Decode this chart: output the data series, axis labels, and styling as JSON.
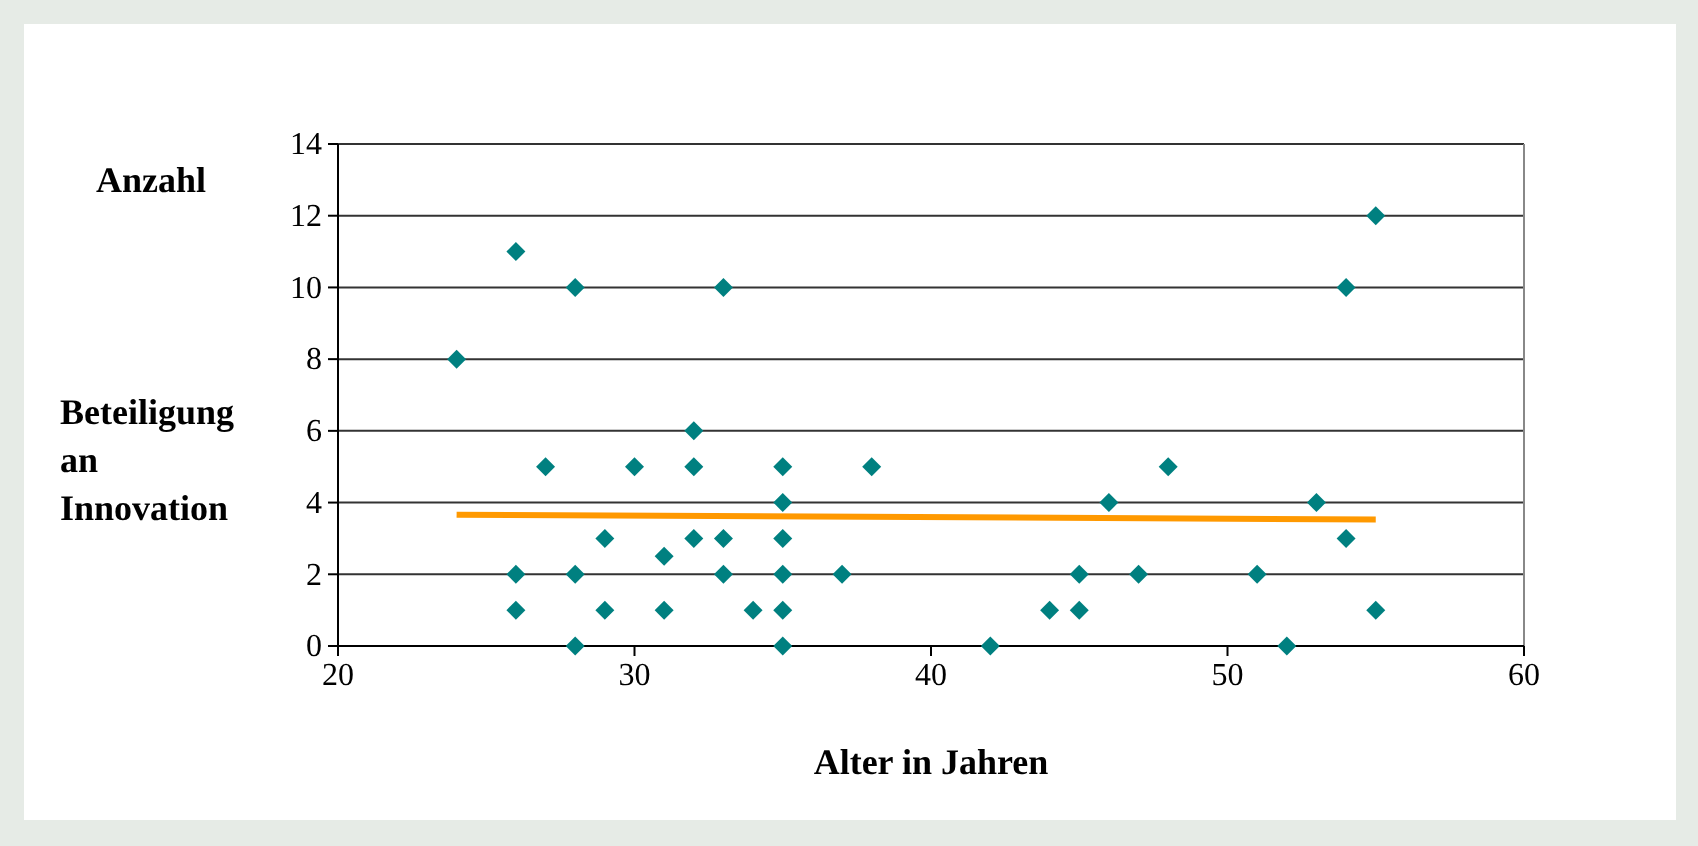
{
  "chart_data": {
    "type": "scatter",
    "xlabel": "Alter in Jahren",
    "ylabel": "Beteiligung an Innovation",
    "annotations": [
      "Anzahl"
    ],
    "xlim": [
      20,
      60
    ],
    "xticks": [
      20,
      30,
      40,
      50,
      60
    ],
    "ylim": [
      0,
      14
    ],
    "yticks": [
      0,
      2,
      4,
      6,
      8,
      10,
      12,
      14
    ],
    "grid": "y",
    "series": [
      {
        "marker": "diamond",
        "color": "#008080",
        "x": [
          24,
          26,
          28,
          33,
          32,
          27,
          30,
          32,
          35,
          38,
          35,
          29,
          32,
          33,
          35,
          31,
          26,
          28,
          33,
          35,
          37,
          26,
          29,
          31,
          34,
          35,
          28,
          35,
          55,
          54,
          48,
          46,
          53,
          54,
          45,
          47,
          51,
          44,
          45,
          55,
          42,
          52
        ],
        "values": [
          8,
          11,
          10,
          10,
          6,
          5,
          5,
          5,
          5,
          5,
          4,
          3,
          3,
          3,
          3,
          2.5,
          2,
          2,
          2,
          2,
          2,
          1,
          1,
          1,
          1,
          1,
          0,
          0,
          12,
          10,
          5,
          4,
          4,
          3,
          2,
          2,
          2,
          1,
          1,
          1,
          0,
          0
        ]
      },
      {
        "type": "line",
        "color": "#ff9900",
        "x": [
          24,
          55
        ],
        "values": [
          3.66,
          3.53
        ]
      }
    ]
  }
}
